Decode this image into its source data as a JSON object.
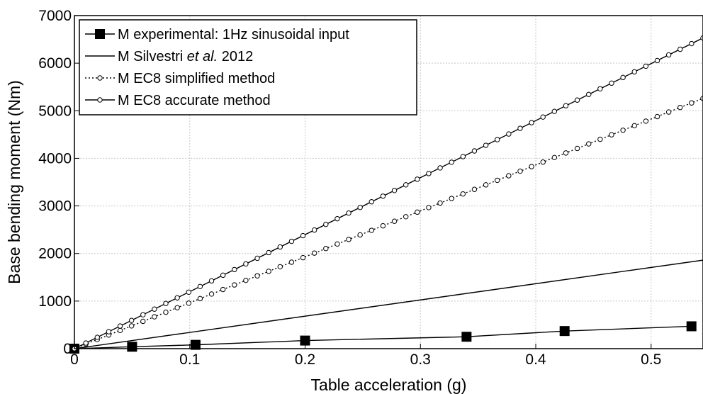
{
  "chart_data": {
    "type": "line",
    "xlabel": "Table acceleration (g)",
    "ylabel": "Base bending moment (Nm)",
    "xlim": [
      0,
      0.545
    ],
    "ylim": [
      0,
      7000
    ],
    "xticks": [
      0,
      0.1,
      0.2,
      0.3,
      0.4,
      0.5
    ],
    "yticks": [
      0,
      1000,
      2000,
      3000,
      4000,
      5000,
      6000,
      7000
    ],
    "x_tick_labels": [
      "0",
      "0.1",
      "0.2",
      "0.3",
      "0.4",
      "0.5"
    ],
    "y_tick_labels": [
      "0",
      "1000",
      "2000",
      "3000",
      "4000",
      "5000",
      "6000",
      "7000"
    ],
    "grid": true,
    "legend_position": "top-left",
    "series": [
      {
        "name": "M experimental: 1Hz sinusoidal input",
        "legend_parts": [
          "M experimental: 1Hz sinusoidal input"
        ],
        "style": "square-markers",
        "x": [
          0,
          0.05,
          0.105,
          0.2,
          0.34,
          0.425,
          0.535
        ],
        "y": [
          0,
          40,
          80,
          170,
          250,
          370,
          470
        ]
      },
      {
        "name": "M Silvestri et al. 2012",
        "legend_parts": [
          "M Silvestri ",
          "et al.",
          " 2012"
        ],
        "style": "solid",
        "x": [
          0,
          0.545
        ],
        "y": [
          0,
          1860
        ]
      },
      {
        "name": "M EC8 simplified method",
        "legend_parts": [
          "M EC8 simplified method"
        ],
        "style": "dotted-circles",
        "x": [
          0,
          0.545
        ],
        "y": [
          0,
          5260
        ]
      },
      {
        "name": "M EC8 accurate method",
        "legend_parts": [
          "M EC8 accurate method"
        ],
        "style": "solid-circles",
        "x": [
          0,
          0.545
        ],
        "y": [
          0,
          6530
        ]
      }
    ]
  }
}
